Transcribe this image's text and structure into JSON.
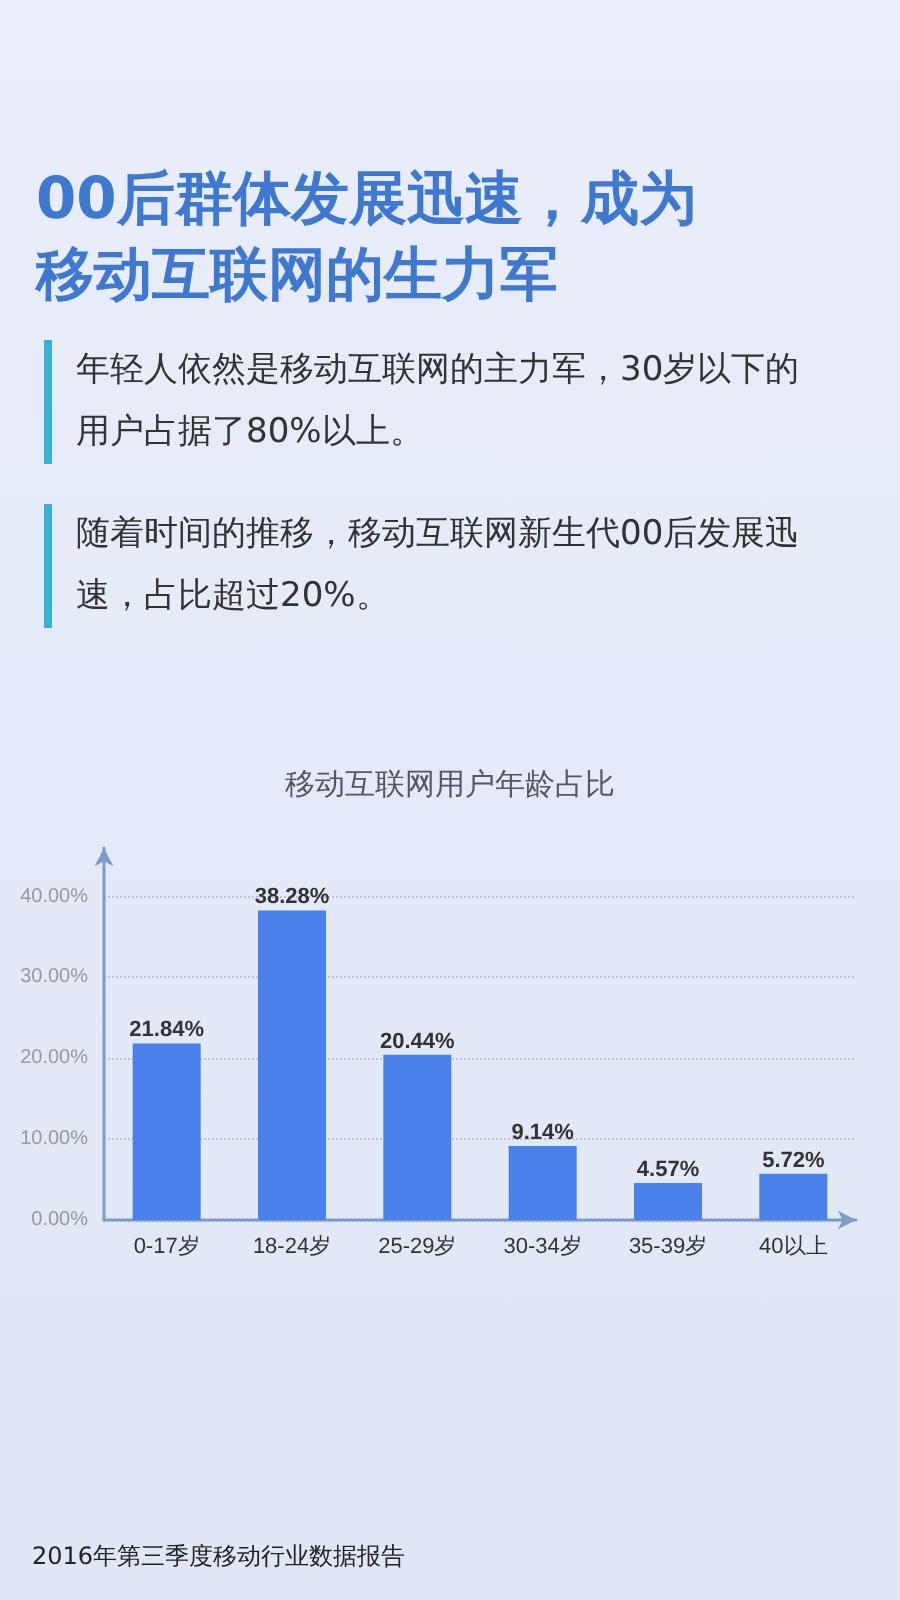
{
  "chart_data": {
    "type": "bar",
    "title": "00后群体发展迅速，成为移动互联网的生力军",
    "subtitle": "移动互联网用户年龄占比",
    "annotations": [
      "年轻人依然是移动互联网的主力军，30岁以下的用户占据了80%以上。",
      "随着时间的推移，移动互联网新生代00后发展迅速，占比超过20%。",
      "2016年第三季度移动行业数据报告"
    ],
    "categories": [
      "0-17岁",
      "18-24岁",
      "25-29岁",
      "30-34岁",
      "35-39岁",
      "40以上"
    ],
    "series": [
      {
        "color": "#4a80ea",
        "values": [
          21.84,
          38.28,
          20.44,
          9.14,
          4.57,
          5.72
        ],
        "value_labels": [
          "21.84%",
          "38.28%",
          "20.44%",
          "9.14%",
          "4.57%",
          "5.72%"
        ]
      }
    ],
    "ylim": [
      0,
      46
    ],
    "yticks": [
      {
        "value": 0,
        "label": "0.00%"
      },
      {
        "value": 10,
        "label": "10.00%"
      },
      {
        "value": 20,
        "label": "20.00%"
      },
      {
        "value": 30,
        "label": "30.00%"
      },
      {
        "value": 40,
        "label": "40.00%"
      }
    ],
    "grid": "y"
  }
}
